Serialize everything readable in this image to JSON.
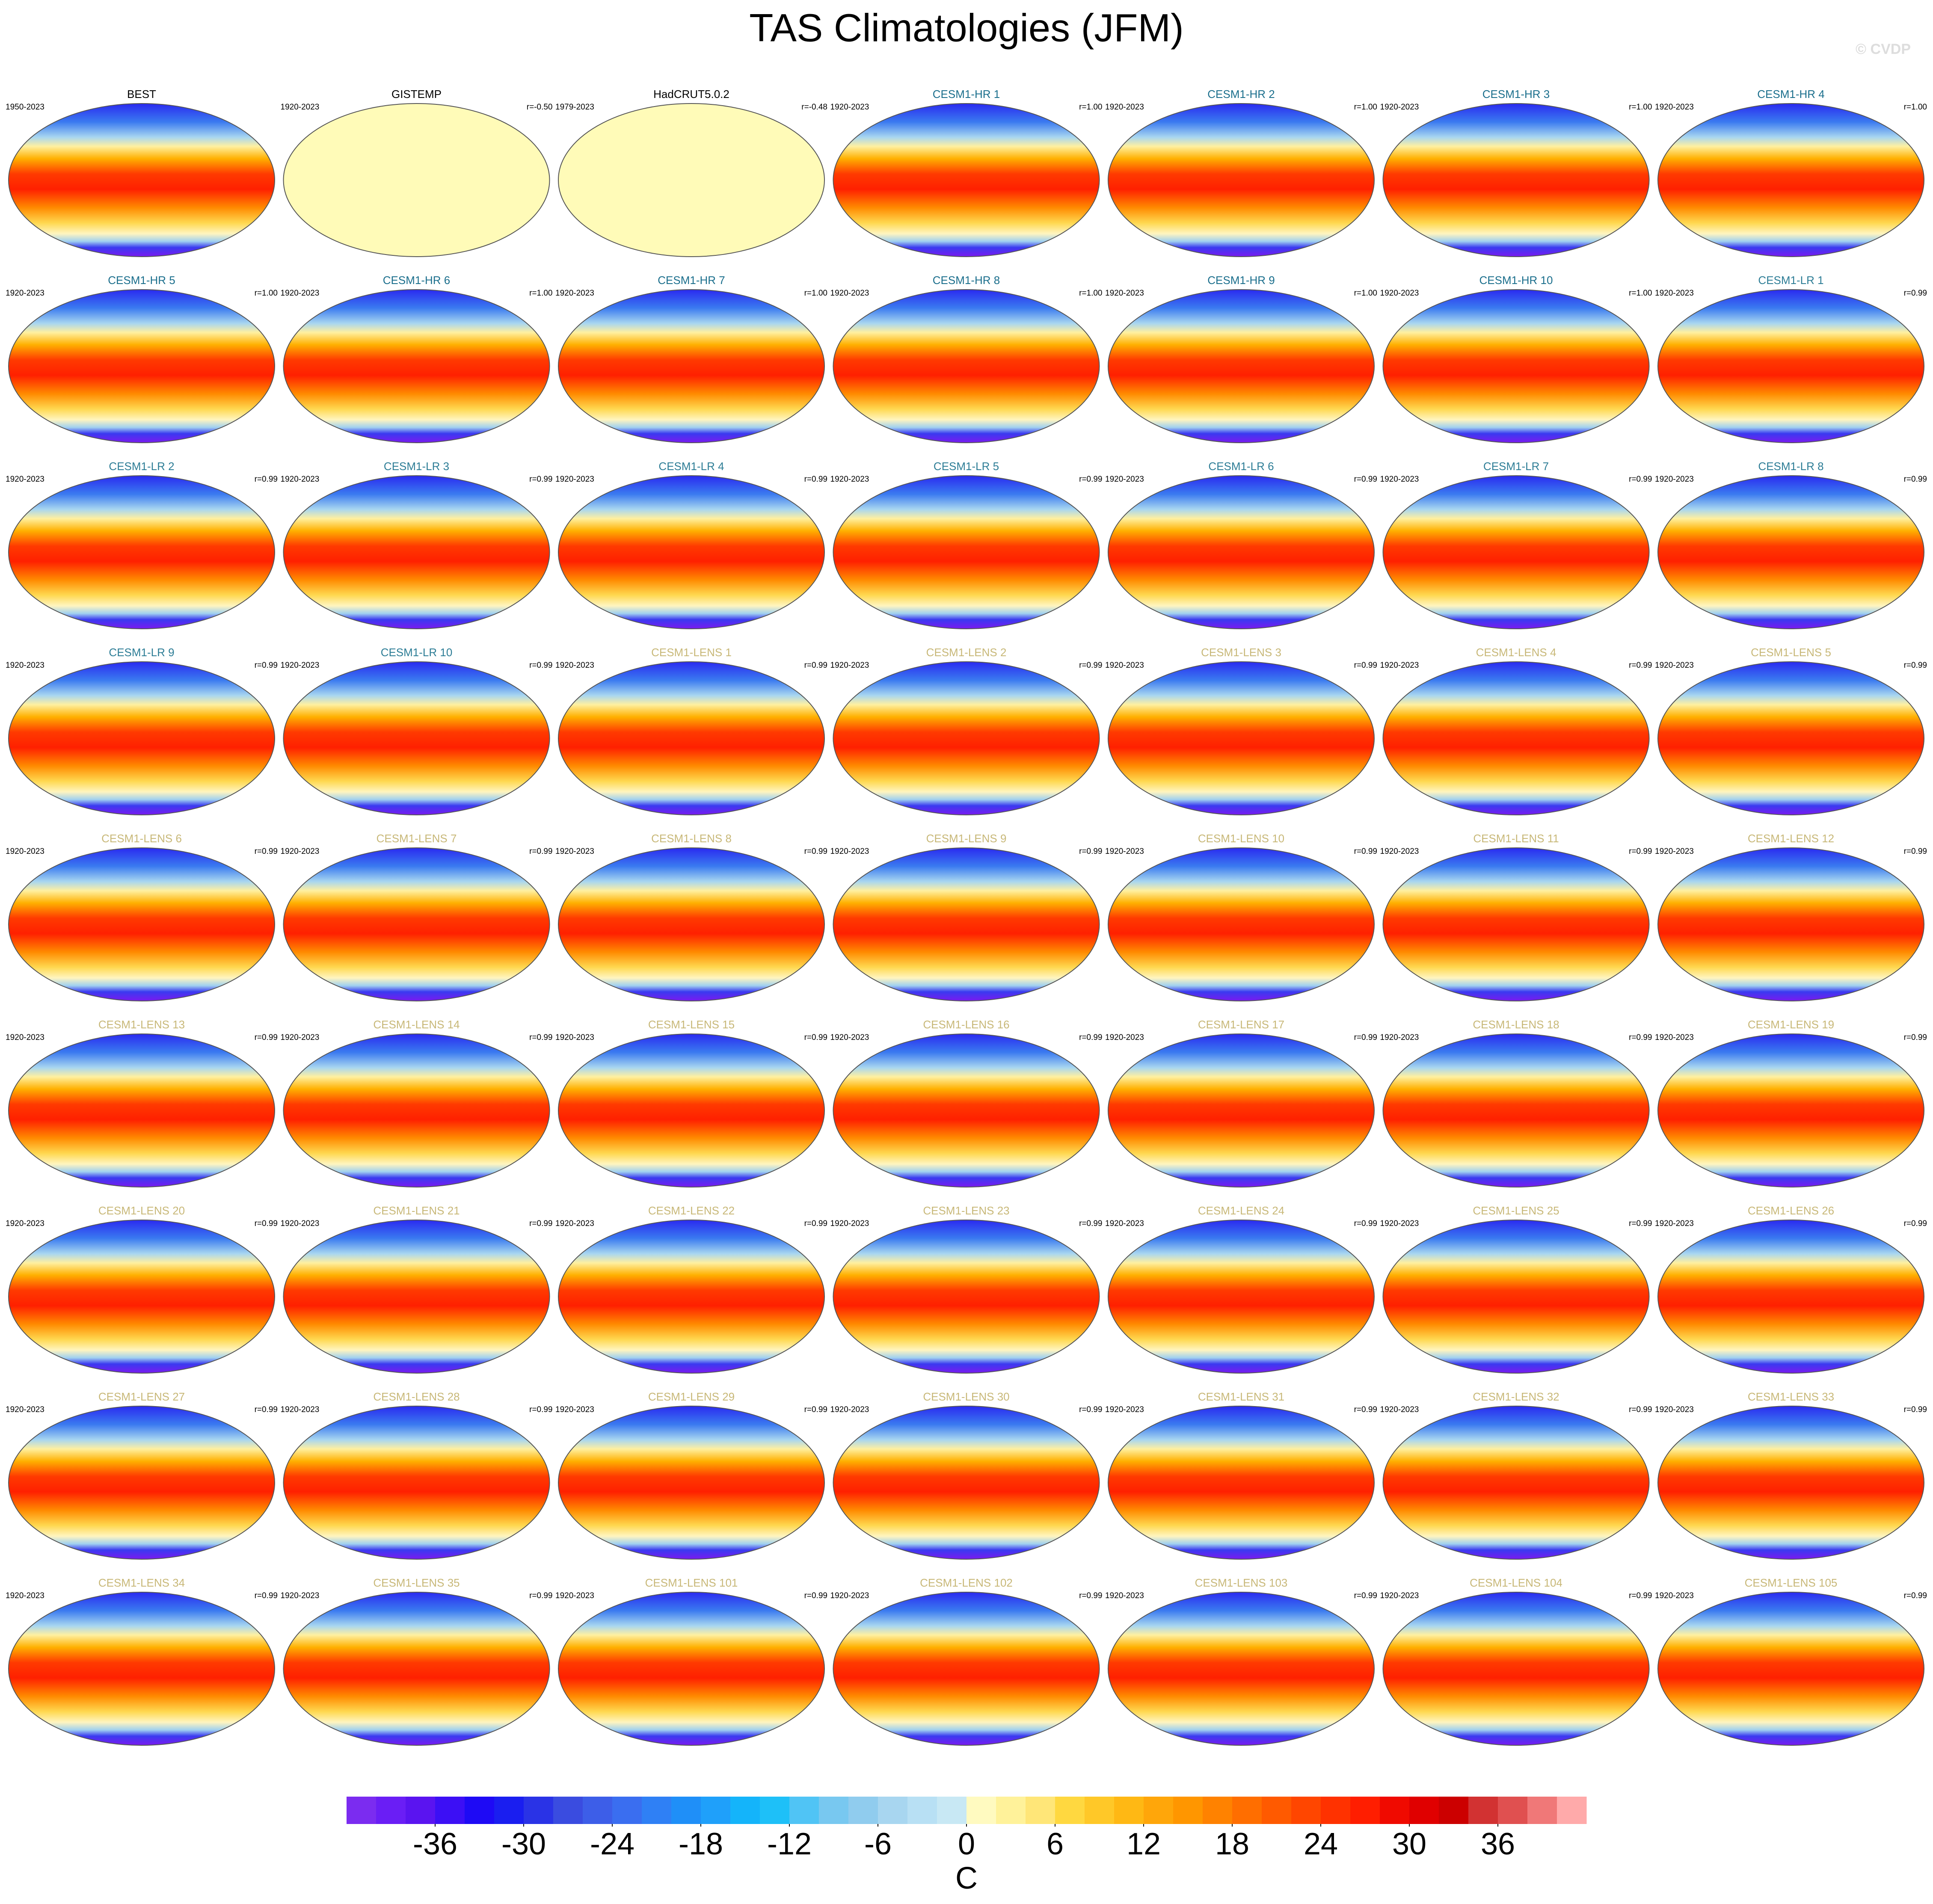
{
  "title": "TAS Climatologies (JFM)",
  "watermark": "© CVDP",
  "groups": [
    {
      "color": "#000000",
      "panels": [
        {
          "title": "BEST",
          "period": "1950-2023"
        },
        {
          "title": "GISTEMP",
          "period": "1920-2023",
          "r": "r=-0.50"
        },
        {
          "title": "HadCRUT5.0.2",
          "period": "1979-2023",
          "r": "r=-0.48"
        }
      ]
    },
    {
      "color": "#1a6e8c",
      "panels": [
        {
          "title": "CESM1-HR 1",
          "period": "1920-2023",
          "r": "r=1.00"
        },
        {
          "title": "CESM1-HR 2",
          "period": "1920-2023",
          "r": "r=1.00"
        },
        {
          "title": "CESM1-HR 3",
          "period": "1920-2023",
          "r": "r=1.00"
        },
        {
          "title": "CESM1-HR 4",
          "period": "1920-2023",
          "r": "r=1.00"
        },
        {
          "title": "CESM1-HR 5",
          "period": "1920-2023",
          "r": "r=1.00"
        },
        {
          "title": "CESM1-HR 6",
          "period": "1920-2023",
          "r": "r=1.00"
        },
        {
          "title": "CESM1-HR 7",
          "period": "1920-2023",
          "r": "r=1.00"
        },
        {
          "title": "CESM1-HR 8",
          "period": "1920-2023",
          "r": "r=1.00"
        },
        {
          "title": "CESM1-HR 9",
          "period": "1920-2023",
          "r": "r=1.00"
        },
        {
          "title": "CESM1-HR 10",
          "period": "1920-2023",
          "r": "r=1.00"
        }
      ]
    },
    {
      "color": "#2d7d96",
      "panels": [
        {
          "title": "CESM1-LR 1",
          "period": "1920-2023",
          "r": "r=0.99"
        },
        {
          "title": "CESM1-LR 2",
          "period": "1920-2023",
          "r": "r=0.99"
        },
        {
          "title": "CESM1-LR 3",
          "period": "1920-2023",
          "r": "r=0.99"
        },
        {
          "title": "CESM1-LR 4",
          "period": "1920-2023",
          "r": "r=0.99"
        },
        {
          "title": "CESM1-LR 5",
          "period": "1920-2023",
          "r": "r=0.99"
        },
        {
          "title": "CESM1-LR 6",
          "period": "1920-2023",
          "r": "r=0.99"
        },
        {
          "title": "CESM1-LR 7",
          "period": "1920-2023",
          "r": "r=0.99"
        },
        {
          "title": "CESM1-LR 8",
          "period": "1920-2023",
          "r": "r=0.99"
        },
        {
          "title": "CESM1-LR 9",
          "period": "1920-2023",
          "r": "r=0.99"
        },
        {
          "title": "CESM1-LR 10",
          "period": "1920-2023",
          "r": "r=0.99"
        }
      ]
    },
    {
      "color": "#c8b878",
      "panels": [
        {
          "title": "CESM1-LENS 1",
          "period": "1920-2023",
          "r": "r=0.99"
        },
        {
          "title": "CESM1-LENS 2",
          "period": "1920-2023",
          "r": "r=0.99"
        },
        {
          "title": "CESM1-LENS 3",
          "period": "1920-2023",
          "r": "r=0.99"
        },
        {
          "title": "CESM1-LENS 4",
          "period": "1920-2023",
          "r": "r=0.99"
        },
        {
          "title": "CESM1-LENS 5",
          "period": "1920-2023",
          "r": "r=0.99"
        },
        {
          "title": "CESM1-LENS 6",
          "period": "1920-2023",
          "r": "r=0.99"
        },
        {
          "title": "CESM1-LENS 7",
          "period": "1920-2023",
          "r": "r=0.99"
        },
        {
          "title": "CESM1-LENS 8",
          "period": "1920-2023",
          "r": "r=0.99"
        },
        {
          "title": "CESM1-LENS 9",
          "period": "1920-2023",
          "r": "r=0.99"
        },
        {
          "title": "CESM1-LENS 10",
          "period": "1920-2023",
          "r": "r=0.99"
        },
        {
          "title": "CESM1-LENS 11",
          "period": "1920-2023",
          "r": "r=0.99"
        },
        {
          "title": "CESM1-LENS 12",
          "period": "1920-2023",
          "r": "r=0.99"
        },
        {
          "title": "CESM1-LENS 13",
          "period": "1920-2023",
          "r": "r=0.99"
        },
        {
          "title": "CESM1-LENS 14",
          "period": "1920-2023",
          "r": "r=0.99"
        },
        {
          "title": "CESM1-LENS 15",
          "period": "1920-2023",
          "r": "r=0.99"
        },
        {
          "title": "CESM1-LENS 16",
          "period": "1920-2023",
          "r": "r=0.99"
        },
        {
          "title": "CESM1-LENS 17",
          "period": "1920-2023",
          "r": "r=0.99"
        },
        {
          "title": "CESM1-LENS 18",
          "period": "1920-2023",
          "r": "r=0.99"
        },
        {
          "title": "CESM1-LENS 19",
          "period": "1920-2023",
          "r": "r=0.99"
        },
        {
          "title": "CESM1-LENS 20",
          "period": "1920-2023",
          "r": "r=0.99"
        },
        {
          "title": "CESM1-LENS 21",
          "period": "1920-2023",
          "r": "r=0.99"
        },
        {
          "title": "CESM1-LENS 22",
          "period": "1920-2023",
          "r": "r=0.99"
        },
        {
          "title": "CESM1-LENS 23",
          "period": "1920-2023",
          "r": "r=0.99"
        },
        {
          "title": "CESM1-LENS 24",
          "period": "1920-2023",
          "r": "r=0.99"
        },
        {
          "title": "CESM1-LENS 25",
          "period": "1920-2023",
          "r": "r=0.99"
        },
        {
          "title": "CESM1-LENS 26",
          "period": "1920-2023",
          "r": "r=0.99"
        },
        {
          "title": "CESM1-LENS 27",
          "period": "1920-2023",
          "r": "r=0.99"
        },
        {
          "title": "CESM1-LENS 28",
          "period": "1920-2023",
          "r": "r=0.99"
        },
        {
          "title": "CESM1-LENS 29",
          "period": "1920-2023",
          "r": "r=0.99"
        },
        {
          "title": "CESM1-LENS 30",
          "period": "1920-2023",
          "r": "r=0.99"
        },
        {
          "title": "CESM1-LENS 31",
          "period": "1920-2023",
          "r": "r=0.99"
        },
        {
          "title": "CESM1-LENS 32",
          "period": "1920-2023",
          "r": "r=0.99"
        },
        {
          "title": "CESM1-LENS 33",
          "period": "1920-2023",
          "r": "r=0.99"
        },
        {
          "title": "CESM1-LENS 34",
          "period": "1920-2023",
          "r": "r=0.99"
        },
        {
          "title": "CESM1-LENS 35",
          "period": "1920-2023",
          "r": "r=0.99"
        },
        {
          "title": "CESM1-LENS 101",
          "period": "1920-2023",
          "r": "r=0.99"
        },
        {
          "title": "CESM1-LENS 102",
          "period": "1920-2023",
          "r": "r=0.99"
        },
        {
          "title": "CESM1-LENS 103",
          "period": "1920-2023",
          "r": "r=0.99"
        },
        {
          "title": "CESM1-LENS 104",
          "period": "1920-2023",
          "r": "r=0.99"
        },
        {
          "title": "CESM1-LENS 105",
          "period": "1920-2023",
          "r": "r=0.99"
        }
      ]
    }
  ],
  "colorbar": {
    "label": "C",
    "xlim": [
      -42,
      42
    ],
    "xticks": [
      -36,
      -30,
      -24,
      -18,
      -12,
      -6,
      0,
      6,
      12,
      18,
      24,
      30,
      36
    ],
    "colors": [
      "#7b2cf0",
      "#6a1ef5",
      "#5a14f0",
      "#3c0ff5",
      "#1e0af5",
      "#1a1ef0",
      "#2a33e6",
      "#3a4ce0",
      "#3d5ee8",
      "#3a6ef0",
      "#2f80f5",
      "#1f8ff8",
      "#1fa0fa",
      "#14b4fa",
      "#1ec0f8",
      "#50c4f5",
      "#78c8f0",
      "#90ccee",
      "#a8d6f0",
      "#b8e0f4",
      "#c8e8f4",
      "#fffac0",
      "#fff29a",
      "#ffe678",
      "#ffd840",
      "#ffc828",
      "#ffb814",
      "#ffa60a",
      "#ff9600",
      "#ff8200",
      "#ff6e00",
      "#ff5a00",
      "#ff4600",
      "#ff3200",
      "#ff1e00",
      "#f00a00",
      "#e00000",
      "#cc0000",
      "#d23232",
      "#e05050",
      "#f07878",
      "#ffaaaa"
    ]
  }
}
